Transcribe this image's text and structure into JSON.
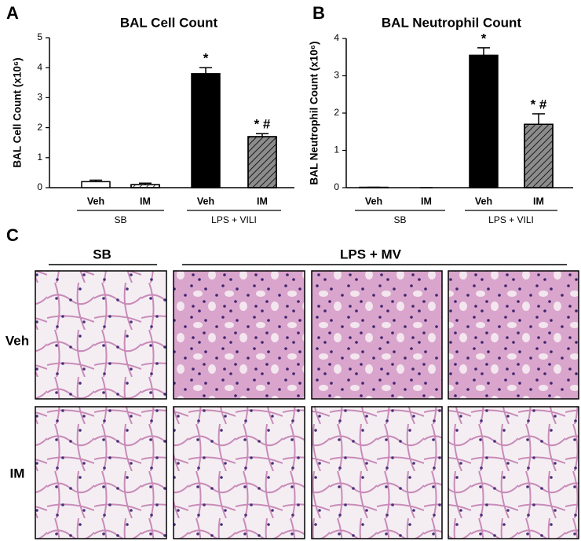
{
  "chart_data": [
    {
      "type": "bar",
      "panel_label": "A",
      "title": "BAL Cell Count",
      "y_label": "BAL Cell Count (x10⁶)",
      "categories": [
        "Veh",
        "IM",
        "Veh",
        "IM"
      ],
      "groups": [
        "SB",
        "LPS + VILI"
      ],
      "values": [
        0.2,
        0.1,
        3.8,
        1.7
      ],
      "errors": [
        0.05,
        0.05,
        0.2,
        0.1
      ],
      "annotations": [
        null,
        null,
        "*",
        "* #"
      ],
      "colors": [
        "#ffffff",
        "#ffffff",
        "#000000",
        "#8c8c8c"
      ],
      "hatch": [
        false,
        true,
        false,
        true
      ],
      "ylim": [
        0,
        5
      ],
      "yticks": [
        0,
        1,
        2,
        3,
        4,
        5
      ]
    },
    {
      "type": "bar",
      "panel_label": "B",
      "title": "BAL Neutrophil Count",
      "y_label": "BAL Neutrophil Count (x10⁶)",
      "categories": [
        "Veh",
        "IM",
        "Veh",
        "IM"
      ],
      "groups": [
        "SB",
        "LPS + VILI"
      ],
      "values": [
        0.01,
        0,
        3.55,
        1.7
      ],
      "errors": [
        0,
        0,
        0.2,
        0.28
      ],
      "annotations": [
        null,
        null,
        "*",
        "* #"
      ],
      "colors": [
        "#ffffff",
        "#ffffff",
        "#000000",
        "#8c8c8c"
      ],
      "hatch": [
        false,
        true,
        false,
        true
      ],
      "ylim": [
        0,
        4
      ],
      "yticks": [
        0,
        1,
        2,
        3,
        4
      ]
    }
  ],
  "panel_c": {
    "label": "C",
    "columns": [
      "SB",
      "LPS + MV"
    ],
    "rows": [
      "Veh",
      "IM"
    ]
  }
}
